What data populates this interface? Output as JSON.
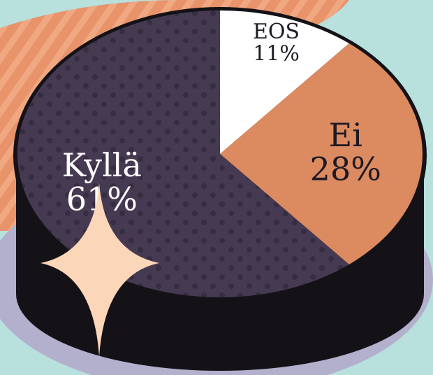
{
  "chart_data": {
    "type": "pie",
    "categories": [
      "Kyllä",
      "Ei",
      "EOS"
    ],
    "values": [
      61,
      28,
      11
    ],
    "value_labels": [
      "61%",
      "28%",
      "11%"
    ],
    "colors": [
      "#463a52",
      "#dc8a60",
      "#ffffff"
    ],
    "label_colors": [
      "#ffffff",
      "#1e1a24",
      "#1e1a24"
    ]
  }
}
